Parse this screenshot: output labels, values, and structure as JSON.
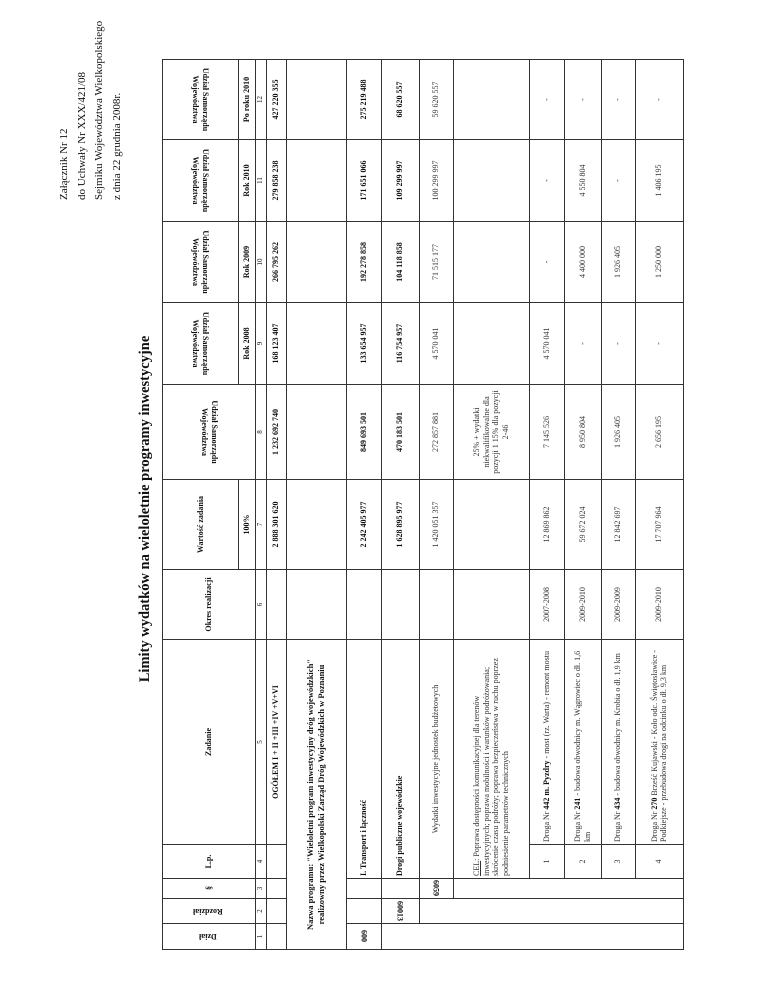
{
  "annex": {
    "line1": "Załącznik Nr 12",
    "line2": "do Uchwały Nr XXX/421/08",
    "line3": "Sejmiku Województwa Wielkopolskiego",
    "line4": "z dnia 22 grudnia 2008r."
  },
  "title": "Limity wydatków na wieloletnie programy inwestycyjne",
  "headers": {
    "dzial": "Dział",
    "rozdzial": "Rozdział",
    "par": "§",
    "lp": "L.p.",
    "zadanie": "Zadanie",
    "okres": "Okres realizacji",
    "wartosc": "Wartość zadania",
    "wartosc_sub": "100%",
    "udzial": "Udział Samorządu Województwa",
    "udzial_short": "Udział Samorządu Województwa",
    "y2008": "Rok 2008",
    "y2009": "Rok 2009",
    "y2010": "Rok 2010",
    "po2010": "Po roku 2010"
  },
  "col_numbers": [
    "1",
    "2",
    "3",
    "4",
    "5",
    "6",
    "7",
    "8",
    "9",
    "10",
    "11",
    "12"
  ],
  "total": {
    "label": "OGÓŁEM I + II +III +IV +V+VI",
    "wartosc": "2 888 301 620",
    "udzial": "1 232 692 740",
    "y2008": "168 123 407",
    "y2009": "266 795 262",
    "y2010": "279 858 238",
    "po2010": "427 220 355"
  },
  "program": {
    "label": "Nazwa programu: \"Wieloletni program inwestycyjny dróg wojewódzkich\" realizowny przez Wielkopolski Zarząd Dróg Wojewódzkich w Poznaniu"
  },
  "transport": {
    "dzial": "600",
    "label": "I. Transport i łączność",
    "wartosc": "2 242 405 977",
    "udzial": "849 693 501",
    "y2008": "133 654 957",
    "y2009": "192 278 858",
    "y2010": "171 651 066",
    "po2010": "275 219 488"
  },
  "drogi": {
    "rozdzial": "60013",
    "label": "Drogi publiczne wojewódzkie",
    "wartosc": "1 628 895 977",
    "udzial": "470 183 501",
    "y2008": "116 754 957",
    "y2009": "104 118 858",
    "y2010": "109 299 997",
    "po2010": "68 620 557"
  },
  "wydatki": {
    "par": "6059",
    "label": "Wydatki inwestycyjne jednostek budżetowych",
    "wartosc": "1 420 051 357",
    "udzial": "272 857 881",
    "y2008": "4 570 041",
    "y2009": "71 515 177",
    "y2010": "100 299 997",
    "po2010": "59 620 557"
  },
  "cel": {
    "prefix": "CEL",
    "text": ": Poprawa dostępności komunikacyjnej dla terenów inwestycyjnych; poprawa mobilności i warunków podróżowania; skrócenie czasu podróży; poprawa bezpieczeństwa w ruchu poprzez podniesienie parametrów technicznych",
    "udzial_note": "25% + wydatki niekwalifikowalne dla pozycji 1 15% dla pozycji 2-46"
  },
  "rows": [
    {
      "lp": "1",
      "pre": "Droga Nr ",
      "bold": "442 m. Pyzdry",
      "post": " - most (rz. Warta) - remont mostu",
      "okres": "2007-2008",
      "wartosc": "12 869 862",
      "udzial": "7 145 526",
      "y2008": "4 570 041",
      "y2009": "-",
      "y2010": "-",
      "po2010": "-"
    },
    {
      "lp": "2",
      "pre": "Droga Nr ",
      "bold": "241",
      "post": " - budowa obwodnicy m. Wągrowiec o dł. 1,6 km",
      "okres": "2009-2010",
      "wartosc": "59 672 024",
      "udzial": "8 950 804",
      "y2008": "-",
      "y2009": "4 400 000",
      "y2010": "4 550 804",
      "po2010": "-"
    },
    {
      "lp": "3",
      "pre": "Droga Nr ",
      "bold": "434",
      "post": " - budowa obwodnicy m. Krobia o dł. 1,9 km",
      "okres": "2009-2009",
      "wartosc": "12 842 697",
      "udzial": "1 926 405",
      "y2008": "-",
      "y2009": "1 926 405",
      "y2010": "-",
      "po2010": "-"
    },
    {
      "lp": "4",
      "pre": "Droga Nr ",
      "bold": "270",
      "post": " Brześć Kujawski - Koło odc. Świętosławice - Podkiejsze - przebudowa drogi na odcinku o dł. 9,3 km",
      "okres": "2009-2010",
      "wartosc": "17 707 964",
      "udzial": "2 656 195",
      "y2008": "-",
      "y2009": "1 250 000",
      "y2010": "1 406 195",
      "po2010": "-"
    }
  ]
}
